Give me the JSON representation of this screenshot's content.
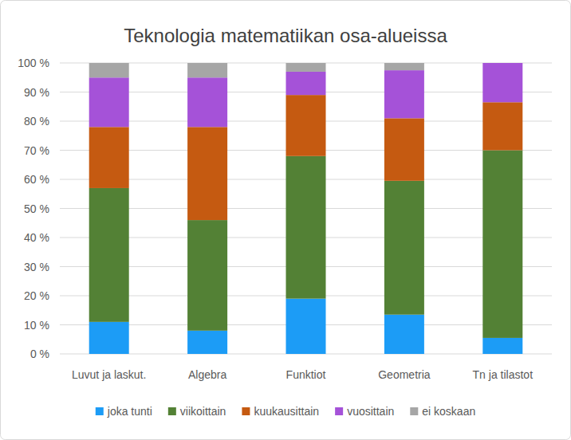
{
  "chart_data": {
    "type": "bar",
    "title": "Teknologia matematiikan osa-alueissa",
    "stacked": true,
    "grid": true,
    "legend": "bottom",
    "categories": [
      "Luvut ja laskut.",
      "Algebra",
      "Funktiot",
      "Geometria",
      "Tn ja tilastot"
    ],
    "series": [
      {
        "name": "joka tunti",
        "color": "#1c9cf6",
        "values": [
          11,
          8,
          19,
          13.5,
          5.5
        ]
      },
      {
        "name": "viikoittain",
        "color": "#538135",
        "values": [
          46,
          38,
          49,
          46,
          64.5
        ]
      },
      {
        "name": "kuukausittain",
        "color": "#c55a11",
        "values": [
          21,
          32,
          21,
          21.5,
          16.5
        ]
      },
      {
        "name": "vuosittain",
        "color": "#a552d8",
        "values": [
          17,
          17,
          8,
          16.5,
          13.5
        ]
      },
      {
        "name": "ei koskaan",
        "color": "#a6a6a6",
        "values": [
          5,
          5,
          3,
          2.5,
          0
        ]
      }
    ],
    "ylim": [
      0,
      100
    ],
    "yticks": [
      {
        "value": 0,
        "label": "0 %"
      },
      {
        "value": 10,
        "label": "10 %"
      },
      {
        "value": 20,
        "label": "20 %"
      },
      {
        "value": 30,
        "label": "30 %"
      },
      {
        "value": 40,
        "label": "40 %"
      },
      {
        "value": 50,
        "label": "50 %"
      },
      {
        "value": 60,
        "label": "60 %"
      },
      {
        "value": 70,
        "label": "70 %"
      },
      {
        "value": 80,
        "label": "80 %"
      },
      {
        "value": 90,
        "label": "90 %"
      },
      {
        "value": 100,
        "label": "100 %"
      }
    ]
  }
}
